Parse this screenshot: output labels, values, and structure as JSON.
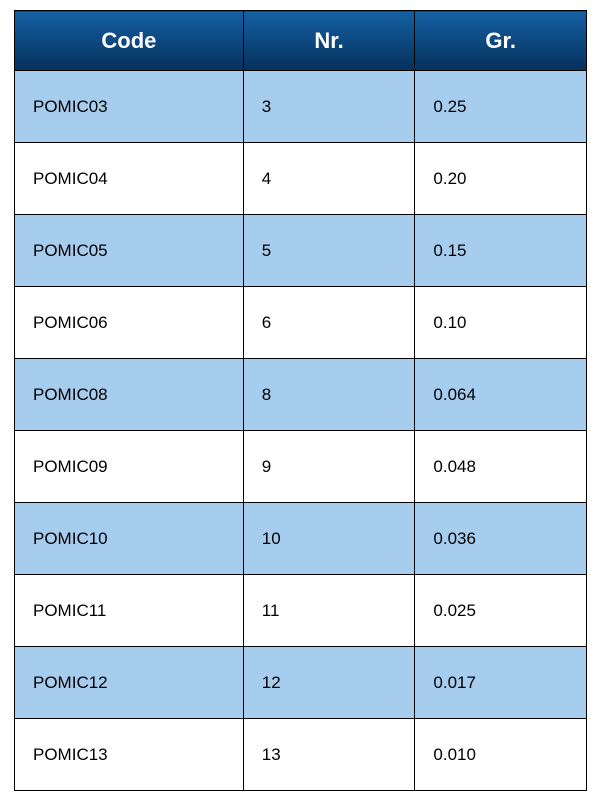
{
  "table": {
    "header_bg": "#0a4f8f",
    "header_bg_gradient_top": "#1460a4",
    "header_bg_gradient_bottom": "#06305b",
    "stripe_bg": "#a7cdee",
    "plain_bg": "#ffffff",
    "border_color": "#000000",
    "header_text_color": "#ffffff",
    "cell_text_color": "#000000",
    "header_fontsize": 22,
    "cell_fontsize": 17,
    "columns": [
      {
        "key": "code",
        "label": "Code",
        "width_pct": 40
      },
      {
        "key": "nr",
        "label": "Nr.",
        "width_pct": 30
      },
      {
        "key": "gr",
        "label": "Gr.",
        "width_pct": 30
      }
    ],
    "rows": [
      {
        "code": "POMIC03",
        "nr": "3",
        "gr": "0.25"
      },
      {
        "code": "POMIC04",
        "nr": "4",
        "gr": "0.20"
      },
      {
        "code": "POMIC05",
        "nr": "5",
        "gr": "0.15"
      },
      {
        "code": "POMIC06",
        "nr": "6",
        "gr": "0.10"
      },
      {
        "code": "POMIC08",
        "nr": "8",
        "gr": "0.064"
      },
      {
        "code": "POMIC09",
        "nr": "9",
        "gr": "0.048"
      },
      {
        "code": "POMIC10",
        "nr": "10",
        "gr": "0.036"
      },
      {
        "code": "POMIC11",
        "nr": "11",
        "gr": "0.025"
      },
      {
        "code": "POMIC12",
        "nr": "12",
        "gr": "0.017"
      },
      {
        "code": "POMIC13",
        "nr": "13",
        "gr": "0.010"
      }
    ]
  }
}
